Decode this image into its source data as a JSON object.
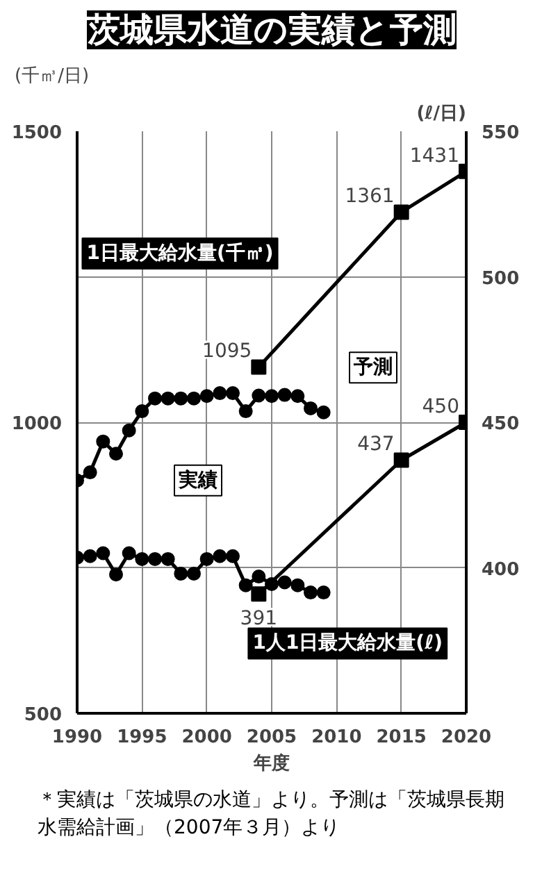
{
  "chart_data": {
    "type": "line",
    "title": "茨城県水道の実績と予測",
    "x": [
      1990,
      1991,
      1992,
      1993,
      1994,
      1995,
      1996,
      1997,
      1998,
      1999,
      2000,
      2001,
      2002,
      2003,
      2004,
      2005,
      2006,
      2007,
      2008,
      2009
    ],
    "series": [
      {
        "color": "#000000",
        "marker": "circle",
        "axis": "y",
        "values": [
          900,
          914,
          967,
          946,
          986,
          1019,
          1041,
          1041,
          1041,
          1041,
          1045,
          1050,
          1050,
          1019,
          1046,
          1045,
          1047,
          1045,
          1024,
          1017
        ]
      },
      {
        "color": "#000000",
        "marker": "square",
        "axis": "y",
        "x": [
          2004,
          2015,
          2020
        ],
        "values": [
          1095,
          1361,
          1431
        ],
        "value_labels": [
          "1095",
          "1361",
          "1431"
        ]
      },
      {
        "color": "#000000",
        "marker": "circle",
        "axis": "y2",
        "values": [
          403.5,
          404,
          405,
          397.7,
          405,
          403,
          403,
          403,
          398,
          398,
          403,
          404,
          404,
          394,
          397,
          394.4,
          395,
          394,
          391.5,
          391.5
        ]
      },
      {
        "color": "#000000",
        "marker": "square",
        "axis": "y2",
        "x": [
          2004,
          2015,
          2020
        ],
        "values": [
          391,
          437,
          450
        ],
        "value_labels": [
          "391",
          "437",
          "450"
        ]
      }
    ],
    "xlabel": "年度",
    "ylabel": "(千㎥/日)",
    "y2label": "(ℓ/日)",
    "xlim": [
      1990,
      2020
    ],
    "xticks": [
      1990,
      1995,
      2000,
      2005,
      2010,
      2015,
      2020
    ],
    "ylim": [
      500,
      1500
    ],
    "yticks": [
      500,
      1000,
      1500
    ],
    "y2lim": [
      350,
      550
    ],
    "y2ticks": [
      400,
      450,
      500,
      550
    ],
    "grid": true,
    "line_style": "solid",
    "annotations": [
      "1日最大給水量(千㎥)",
      "予測",
      "実績",
      "1人1日最大給水量(ℓ)",
      "＊実績は「茨城県の水道」より。予測は「茨城県長期水需給計画」（2007年３月）より"
    ]
  }
}
